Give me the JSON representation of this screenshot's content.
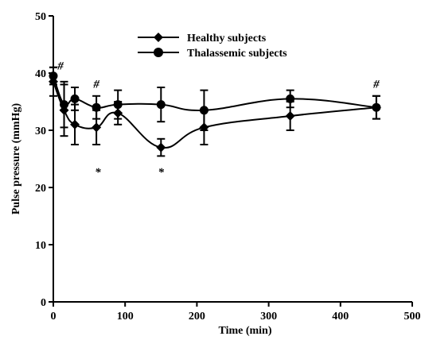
{
  "chart_data": {
    "type": "line",
    "xlabel": "Time (min)",
    "ylabel": "Pulse pressure (mmHg)",
    "xlim": [
      0,
      500
    ],
    "ylim": [
      0,
      50
    ],
    "xticks": [
      "0",
      "100",
      "200",
      "300",
      "400",
      "500"
    ],
    "yticks": [
      "0",
      "10",
      "20",
      "30",
      "40",
      "50"
    ],
    "grid": false,
    "legend_position": "top-center",
    "series": [
      {
        "name": "Healthy subjects",
        "marker": "diamond",
        "color": "#000000",
        "x": [
          0,
          15,
          30,
          60,
          90,
          150,
          210,
          330,
          450
        ],
        "y": [
          38.5,
          33.5,
          31.0,
          30.5,
          33.0,
          27.0,
          30.5,
          32.5,
          34.0
        ],
        "err": [
          2.5,
          4.5,
          3.5,
          3.0,
          2.0,
          1.5,
          3.0,
          2.5,
          2.0
        ]
      },
      {
        "name": "Thalassemic subjects",
        "marker": "circle",
        "color": "#000000",
        "x": [
          0,
          15,
          30,
          60,
          90,
          150,
          210,
          330,
          450
        ],
        "y": [
          39.5,
          34.5,
          35.5,
          34.0,
          34.5,
          34.5,
          33.5,
          35.5,
          34.0
        ],
        "err": [
          1.5,
          4.0,
          2.0,
          2.0,
          2.5,
          3.0,
          3.5,
          1.5,
          2.0
        ]
      }
    ],
    "annotations": [
      {
        "text": "#",
        "x": 10,
        "y": 40.6
      },
      {
        "text": "#",
        "x": 60,
        "y": 37.4
      },
      {
        "text": "#",
        "x": 450,
        "y": 37.4
      },
      {
        "text": "*",
        "x": 62,
        "y": 22.0
      },
      {
        "text": "*",
        "x": 150,
        "y": 22.0
      }
    ]
  }
}
